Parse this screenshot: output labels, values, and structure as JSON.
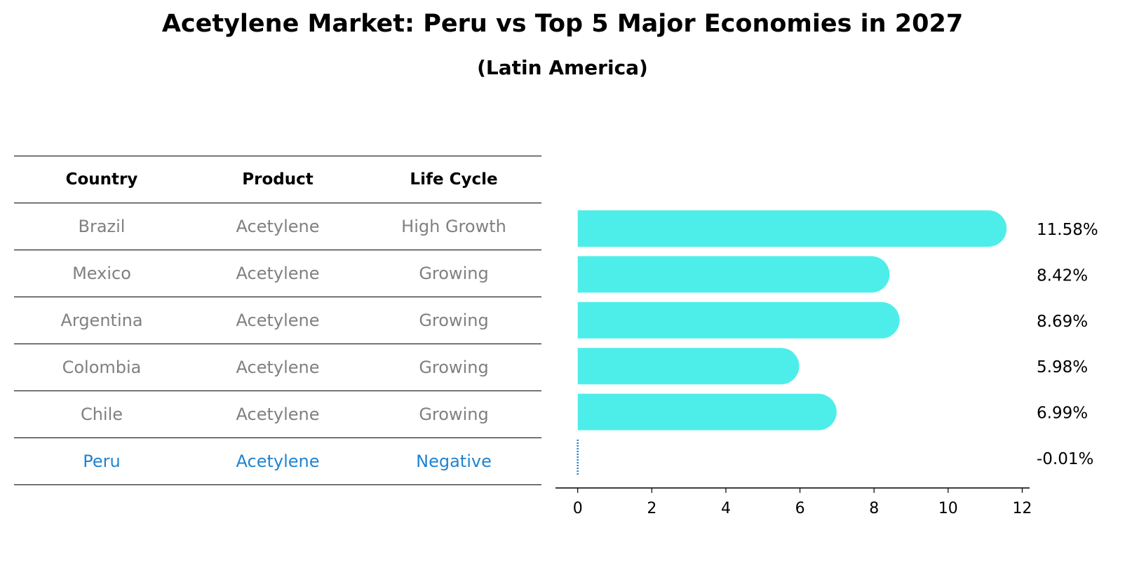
{
  "title": "Acetylene Market: Peru vs Top 5 Major Economies in 2027",
  "subtitle": "(Latin America)",
  "table": {
    "headers": [
      "Country",
      "Product",
      "Life Cycle"
    ],
    "rows": [
      [
        "Brazil",
        "Acetylene",
        "High Growth"
      ],
      [
        "Mexico",
        "Acetylene",
        "Growing"
      ],
      [
        "Argentina",
        "Acetylene",
        "Growing"
      ],
      [
        "Colombia",
        "Acetylene",
        "Growing"
      ],
      [
        "Chile",
        "Acetylene",
        "Growing"
      ],
      [
        "Peru",
        "Acetylene",
        "Negative"
      ]
    ]
  },
  "chart_data": {
    "type": "bar",
    "orientation": "horizontal",
    "categories": [
      "Brazil",
      "Mexico",
      "Argentina",
      "Colombia",
      "Chile",
      "Peru"
    ],
    "values": [
      11.58,
      8.42,
      8.69,
      5.98,
      6.99,
      -0.01
    ],
    "value_labels": [
      "11.58%",
      "8.42%",
      "8.69%",
      "5.98%",
      "6.99%",
      "-0.01%"
    ],
    "xlim": [
      -0.6,
      12.2
    ],
    "xticks": [
      0,
      2,
      4,
      6,
      8,
      10,
      12
    ],
    "tick_labels": [
      "0",
      "2",
      "4",
      "6",
      "8",
      "10",
      "12"
    ],
    "bar_color": "#4deeea",
    "highlight_color": "#1f83d1",
    "xlabel": "",
    "ylabel": ""
  }
}
